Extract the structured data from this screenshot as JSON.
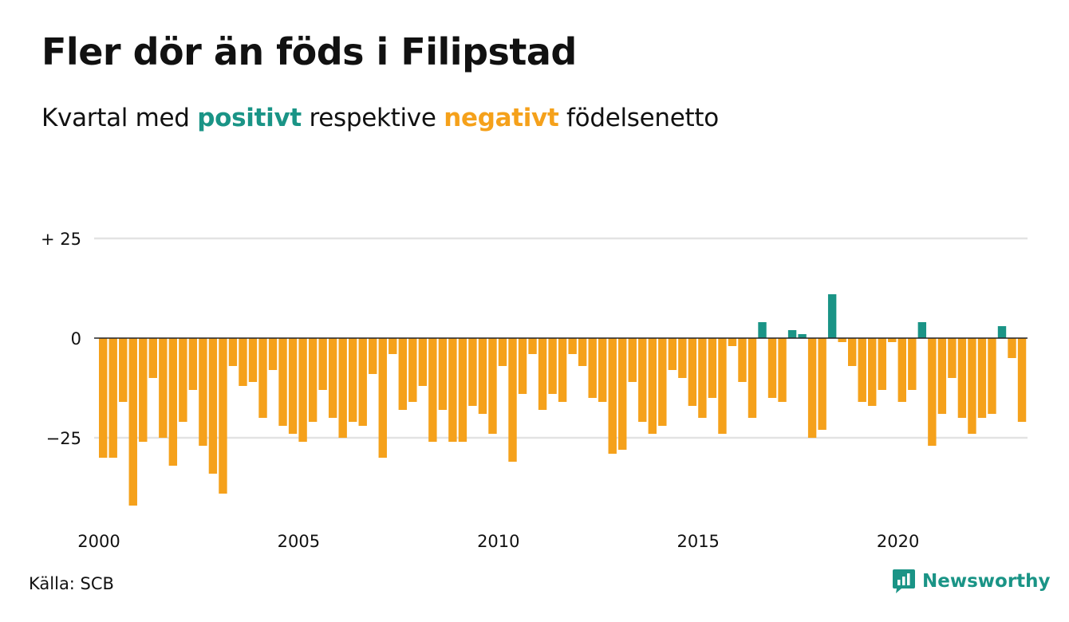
{
  "title": "Fler dör än föds i Filipstad",
  "subtitle": {
    "pre": "Kvartal med",
    "positive": "positivt",
    "mid": "respektive",
    "negative": "negativt",
    "post": "födelsenetto"
  },
  "source": "Källa: SCB",
  "brand": {
    "name": "Newsworthy",
    "icon": "newsworthy-logo-icon"
  },
  "colors": {
    "positive": "#1a9486",
    "negative": "#f5a11b",
    "grid": "#e3e3e3",
    "zero": "#222222"
  },
  "chart_data": {
    "type": "bar",
    "title": "Fler dör än föds i Filipstad",
    "xlabel": "",
    "ylabel": "",
    "ylim": [
      -45,
      27
    ],
    "grid": true,
    "y_ticks": [
      {
        "value": 25,
        "label": "+ 25"
      },
      {
        "value": 0,
        "label": "0"
      },
      {
        "value": -25,
        "label": "−25"
      }
    ],
    "x_ticks": [
      {
        "value": 2000,
        "label": "2000"
      },
      {
        "value": 2005,
        "label": "2005"
      },
      {
        "value": 2010,
        "label": "2010"
      },
      {
        "value": 2015,
        "label": "2015"
      },
      {
        "value": 2020,
        "label": "2020"
      }
    ],
    "x_start": 2000,
    "periods_per_year": 4,
    "values": [
      -30,
      -30,
      -16,
      -42,
      -26,
      -10,
      -25,
      -32,
      -21,
      -13,
      -27,
      -34,
      -39,
      -7,
      -12,
      -11,
      -20,
      -8,
      -22,
      -24,
      -26,
      -21,
      -13,
      -20,
      -25,
      -21,
      -22,
      -9,
      -30,
      -4,
      -18,
      -16,
      -12,
      -26,
      -18,
      -26,
      -26,
      -17,
      -19,
      -24,
      -7,
      -31,
      -14,
      -4,
      -18,
      -14,
      -16,
      -4,
      -7,
      -15,
      -16,
      -29,
      -28,
      -11,
      -21,
      -24,
      -22,
      -8,
      -10,
      -17,
      -20,
      -15,
      -24,
      -2,
      -11,
      -20,
      4,
      -15,
      -16,
      2,
      1,
      -25,
      -23,
      11,
      -1,
      -7,
      -16,
      -17,
      -13,
      -1,
      -16,
      -13,
      4,
      -27,
      -19,
      -10,
      -20,
      -24,
      -20,
      -19,
      3,
      -5,
      -21
    ]
  }
}
